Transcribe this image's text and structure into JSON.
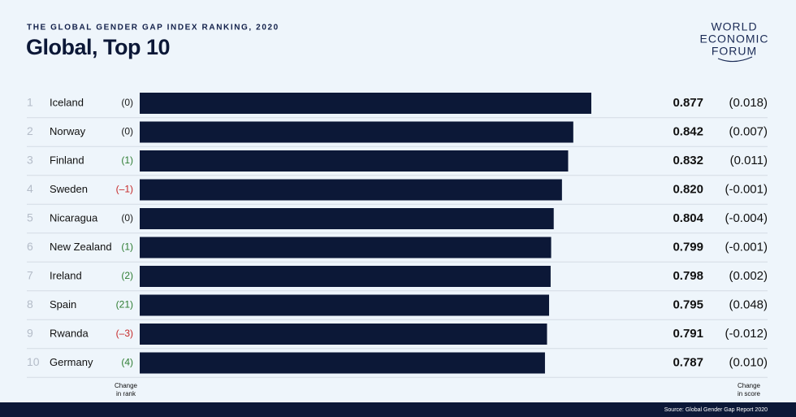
{
  "chart_data": {
    "type": "bar",
    "supertitle": "THE GLOBAL GENDER GAP INDEX RANKING, 2020",
    "title": "Global, Top 10",
    "logo": [
      "WORLD",
      "ECONOMIC",
      "FORUM"
    ],
    "ranks": [
      1,
      2,
      3,
      4,
      5,
      6,
      7,
      8,
      9,
      10
    ],
    "categories": [
      "Iceland",
      "Norway",
      "Finland",
      "Sweden",
      "Nicaragua",
      "New Zealand",
      "Ireland",
      "Spain",
      "Rwanda",
      "Germany"
    ],
    "rank_changes": [
      0,
      0,
      1,
      -1,
      0,
      1,
      2,
      21,
      -3,
      4
    ],
    "rank_change_labels": [
      "(0)",
      "(0)",
      "(1)",
      "(–1)",
      "(0)",
      "(1)",
      "(2)",
      "(21)",
      "(–3)",
      "(4)"
    ],
    "rank_change_colors": {
      "up": "#2e7d32",
      "down": "#c62828",
      "none": "#1a1a1a"
    },
    "values": [
      0.877,
      0.842,
      0.832,
      0.82,
      0.804,
      0.799,
      0.798,
      0.795,
      0.791,
      0.787
    ],
    "value_labels": [
      "0.877",
      "0.842",
      "0.832",
      "0.820",
      "0.804",
      "0.799",
      "0.798",
      "0.795",
      "0.791",
      "0.787"
    ],
    "score_change_labels": [
      "(0.018)",
      "(0.007)",
      "(0.011)",
      "(-0.001)",
      "(-0.004)",
      "(-0.001)",
      "(0.002)",
      "(0.048)",
      "(-0.012)",
      "(0.010)"
    ],
    "color": "#0c1837",
    "rank_change_note": [
      "Change",
      "in rank"
    ],
    "score_change_note": [
      "Change",
      "in score"
    ],
    "source": "Source: Global Gender Gap Report 2020"
  }
}
